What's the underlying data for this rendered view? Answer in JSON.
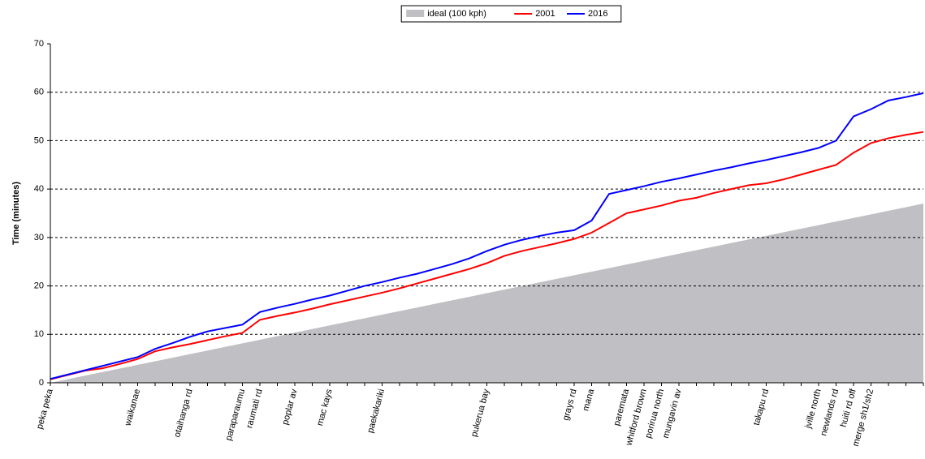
{
  "chart_data": {
    "type": "line",
    "y_label": "Time (minutes)",
    "categories": [
      "peka peka",
      null,
      null,
      null,
      null,
      "waikanae",
      null,
      null,
      "otaihanga rd",
      null,
      null,
      "paraparaumu",
      "raumati rd",
      null,
      "poplar av",
      null,
      "mac kays",
      null,
      null,
      "paekakariki",
      null,
      null,
      null,
      null,
      null,
      "pukerua bay",
      null,
      null,
      null,
      null,
      "grays rd",
      "mana",
      null,
      "paremata",
      "whitford brown",
      "porirua north",
      "mungavin av",
      null,
      null,
      null,
      null,
      "takapu rd",
      null,
      null,
      "jville north",
      "newlands rd",
      "huiti rd off",
      "merge sh1/sh2",
      null,
      null,
      null
    ],
    "series": [
      {
        "name": "ideal (100 kph)",
        "color": "#c0c0c4",
        "style": "area",
        "values": [
          0,
          0.74,
          1.48,
          2.22,
          2.96,
          3.7,
          4.44,
          5.18,
          5.92,
          6.66,
          7.4,
          8.14,
          8.88,
          9.62,
          10.36,
          11.1,
          11.84,
          12.58,
          13.32,
          14.06,
          14.8,
          15.54,
          16.28,
          17.02,
          17.76,
          18.5,
          19.24,
          19.98,
          20.72,
          21.46,
          22.2,
          22.94,
          23.68,
          24.42,
          25.16,
          25.9,
          26.64,
          27.38,
          28.12,
          28.86,
          29.6,
          30.34,
          31.08,
          31.82,
          32.56,
          33.3,
          34.04,
          34.78,
          35.52,
          36.26,
          37
        ]
      },
      {
        "name": "2001",
        "color": "#ff0000",
        "style": "line",
        "values": [
          0.7,
          1.6,
          2.5,
          3.0,
          3.9,
          4.9,
          6.5,
          7.3,
          8.0,
          8.8,
          9.6,
          10.3,
          13.0,
          13.8,
          14.5,
          15.3,
          16.2,
          17.0,
          17.8,
          18.6,
          19.5,
          20.5,
          21.5,
          22.5,
          23.5,
          24.7,
          26.2,
          27.2,
          28.0,
          28.8,
          29.7,
          31.0,
          33.0,
          35.0,
          35.8,
          36.6,
          37.6,
          38.2,
          39.2,
          40.0,
          40.8,
          41.2,
          42.0,
          43.0,
          44.0,
          45.0,
          47.5,
          49.5,
          50.5,
          51.2,
          51.8
        ]
      },
      {
        "name": "2016",
        "color": "#0000ff",
        "style": "line",
        "values": [
          0.8,
          1.7,
          2.6,
          3.5,
          4.4,
          5.3,
          7.0,
          8.2,
          9.5,
          10.6,
          11.3,
          12.0,
          14.6,
          15.5,
          16.3,
          17.2,
          18.0,
          19.0,
          20.0,
          20.8,
          21.7,
          22.5,
          23.5,
          24.5,
          25.7,
          27.2,
          28.5,
          29.5,
          30.3,
          31.0,
          31.5,
          33.5,
          39.0,
          39.8,
          40.6,
          41.5,
          42.2,
          43.0,
          43.8,
          44.5,
          45.3,
          46.0,
          46.8,
          47.6,
          48.5,
          50.0,
          55.0,
          56.5,
          58.3,
          59.0,
          59.8
        ]
      }
    ],
    "ylim": [
      0,
      70
    ],
    "yticks": [
      0,
      10,
      20,
      30,
      40,
      50,
      60,
      70
    ],
    "grid": true,
    "legend": "top"
  }
}
